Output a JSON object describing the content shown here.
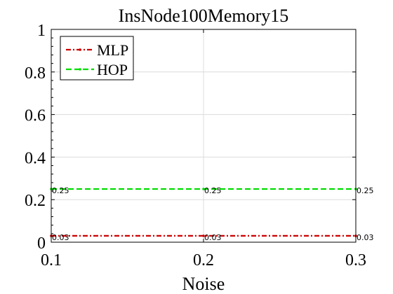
{
  "chart_data": {
    "type": "line",
    "title": "InsNode100Memory15",
    "xlabel": "Noise",
    "ylabel": "",
    "x": [
      0.1,
      0.2,
      0.3
    ],
    "xlim": [
      0.1,
      0.3
    ],
    "ylim": [
      0,
      1
    ],
    "xticks": [
      "0.1",
      "0.2",
      "0.3"
    ],
    "yticks": [
      "0",
      "0.2",
      "0.4",
      "0.6",
      "0.8",
      "1"
    ],
    "grid": true,
    "legend_position": "top-left",
    "series": [
      {
        "name": "MLP",
        "values": [
          0.03,
          0.03,
          0.03
        ],
        "labels": [
          "0.03",
          "0.03",
          "0.03"
        ],
        "color": "#cc0000",
        "style": "dash-dot"
      },
      {
        "name": "HOP",
        "values": [
          0.25,
          0.25,
          0.25
        ],
        "labels": [
          "0.25",
          "0.25",
          "0.25"
        ],
        "color": "#00dd00",
        "style": "dashed"
      }
    ]
  }
}
